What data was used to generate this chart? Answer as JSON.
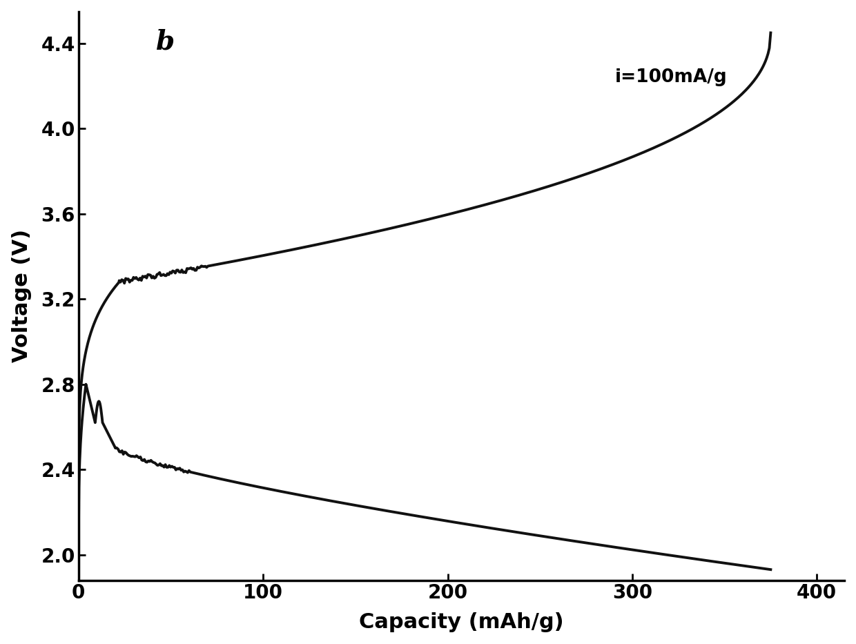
{
  "title": "",
  "xlabel": "Capacity (mAh/g)",
  "ylabel": "Voltage (V)",
  "annotation": "i=100mA/g",
  "label_b": "b",
  "xlim": [
    0,
    415
  ],
  "ylim": [
    1.88,
    4.55
  ],
  "xticks": [
    0,
    100,
    200,
    300,
    400
  ],
  "yticks": [
    2.0,
    2.4,
    2.8,
    3.2,
    3.6,
    4.0,
    4.4
  ],
  "line_color": "#111111",
  "background_color": "#ffffff",
  "xlabel_fontsize": 22,
  "ylabel_fontsize": 22,
  "tick_fontsize": 20,
  "annotation_fontsize": 19,
  "label_b_fontsize": 28,
  "linewidth": 2.8
}
